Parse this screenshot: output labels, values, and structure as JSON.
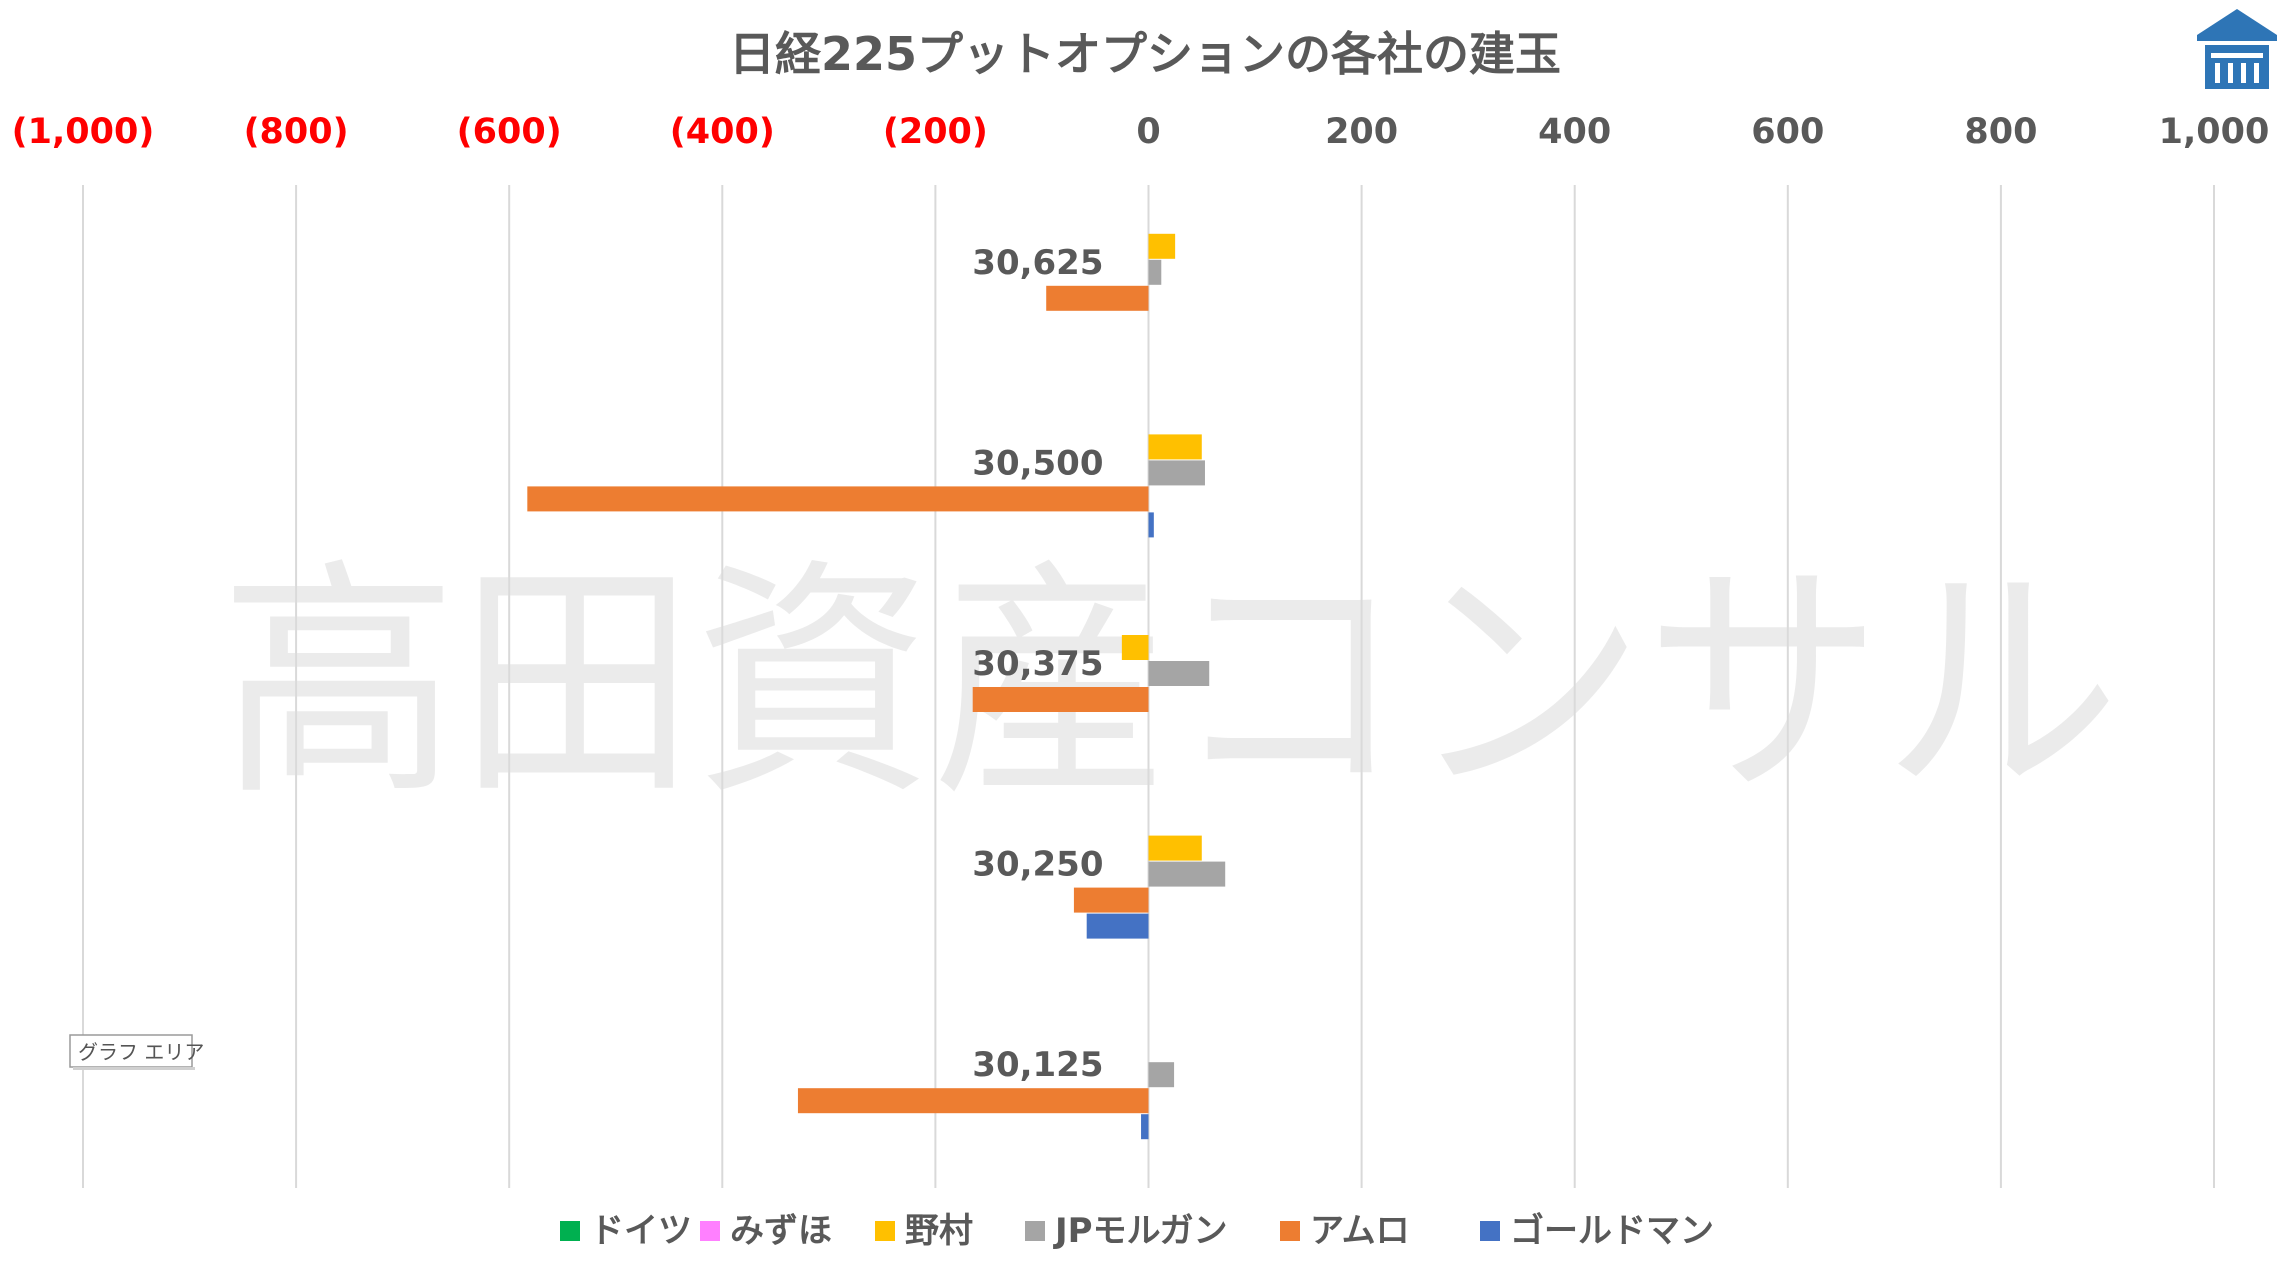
{
  "chart_data": {
    "type": "bar",
    "orientation": "horizontal",
    "title": "日経225プットオプションの各社の建玉",
    "x_ticks": [
      "(1,000)",
      "(800)",
      "(600)",
      "(400)",
      "(200)",
      "0",
      "200",
      "400",
      "600",
      "800",
      "1,000"
    ],
    "xlim": [
      -1000,
      1000
    ],
    "grid": true,
    "legend_position": "bottom",
    "categories": [
      "30,625",
      "30,500",
      "30,375",
      "30,250",
      "30,125"
    ],
    "series": [
      {
        "name": "ドイツ",
        "color": "#00b050",
        "values": [
          0,
          0,
          0,
          0,
          0
        ]
      },
      {
        "name": "みずほ",
        "color": "#ff80ff",
        "values": [
          0,
          0,
          0,
          0,
          0
        ]
      },
      {
        "name": "野村",
        "color": "#ffc000",
        "values": [
          25,
          50,
          -25,
          50,
          0
        ]
      },
      {
        "name": "JPモルガン",
        "color": "#a5a5a5",
        "values": [
          12,
          53,
          57,
          72,
          24
        ]
      },
      {
        "name": "アムロ",
        "color": "#ed7d31",
        "values": [
          -96,
          -583,
          -165,
          -70,
          -329
        ]
      },
      {
        "name": "ゴールドマン",
        "color": "#4472c4",
        "values": [
          0,
          5,
          0,
          -58,
          -7
        ]
      }
    ]
  },
  "watermark": "高田資産コンサル",
  "tooltip": "グラフ エリア",
  "colors": {
    "negative_tick": "#ff0000",
    "positive_tick": "#595959",
    "text": "#595959",
    "grid": "#d9d9d9",
    "logo": "#2e75b6"
  },
  "icons": {
    "logo": "house-roof-logo-icon"
  }
}
